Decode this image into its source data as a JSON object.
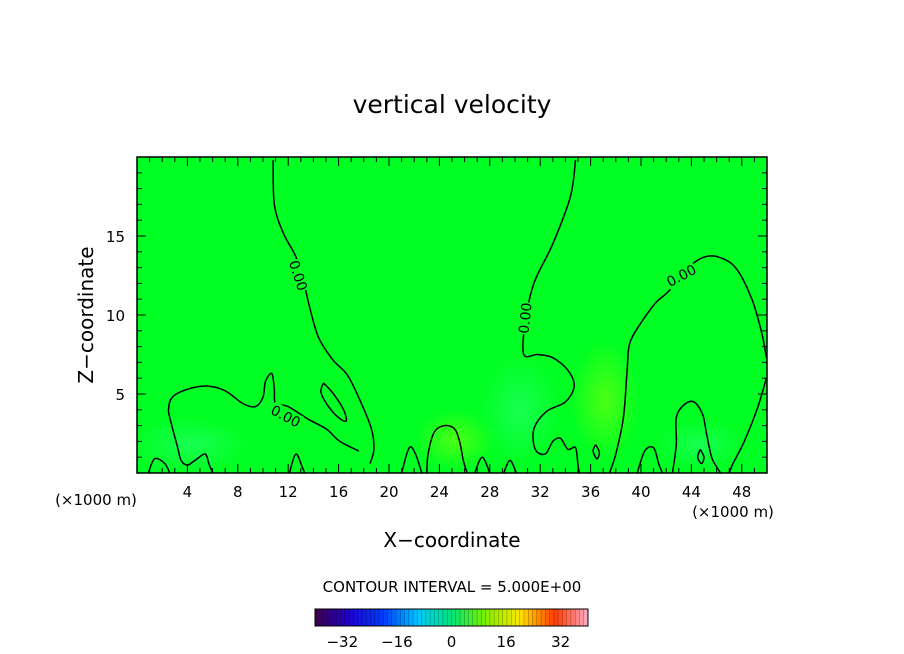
{
  "chart_data": {
    "type": "heatmap",
    "title": "vertical velocity",
    "xlabel": "X−coordinate",
    "ylabel": "Z−coordinate",
    "x_unit_label": "(×1000 m)",
    "y_unit_label": "(×1000 m)",
    "xlim": [
      0,
      50
    ],
    "ylim": [
      0,
      20
    ],
    "x_ticks": [
      4,
      8,
      12,
      16,
      20,
      24,
      28,
      32,
      36,
      40,
      44,
      48
    ],
    "y_ticks": [
      5,
      10,
      15
    ],
    "contour_interval_text": "CONTOUR INTERVAL = 5.000E+00",
    "contour_value_label": "0.00",
    "colorbar": {
      "min": -40,
      "max": 40,
      "ticks": [
        -32,
        -16,
        0,
        16,
        32
      ],
      "tick_labels": [
        "−32",
        "−16",
        "0",
        "16",
        "32"
      ]
    },
    "colors": {
      "background_field": "#00ff22",
      "contour_line": "#000000"
    },
    "contours": [
      {
        "label": "0.00",
        "label_at": [
          12.8,
          12.5
        ],
        "label_angle": 72,
        "points": [
          [
            10.8,
            19.8
          ],
          [
            10.9,
            17
          ],
          [
            11.6,
            15.2
          ],
          [
            12.6,
            13.7
          ],
          [
            13.2,
            12.2
          ],
          [
            13.7,
            10.5
          ],
          [
            14.4,
            8.6
          ],
          [
            15.5,
            7.2
          ],
          [
            16.7,
            6.2
          ],
          [
            17.7,
            4.6
          ],
          [
            18.6,
            2.8
          ],
          [
            18.8,
            1.5
          ],
          [
            18.5,
            0.6
          ]
        ]
      },
      {
        "label": "0.00",
        "label_at": [
          11.8,
          3.6
        ],
        "label_angle": 28,
        "points": [
          [
            17.6,
            1.4
          ],
          [
            16.1,
            2.0
          ],
          [
            15.0,
            2.8
          ],
          [
            13.6,
            3.4
          ],
          [
            12.0,
            4.2
          ],
          [
            11.0,
            4.4
          ],
          [
            10.9,
            5.3
          ],
          [
            10.7,
            6.3
          ],
          [
            10.2,
            5.8
          ],
          [
            10.0,
            4.8
          ],
          [
            9.4,
            4.2
          ],
          [
            8.4,
            4.4
          ],
          [
            7.0,
            5.2
          ],
          [
            5.6,
            5.5
          ],
          [
            4.0,
            5.3
          ],
          [
            2.8,
            4.8
          ],
          [
            2.5,
            4.0
          ],
          [
            2.7,
            3.2
          ],
          [
            3.2,
            1.7
          ],
          [
            3.5,
            0.8
          ],
          [
            4.0,
            0.5
          ],
          [
            4.6,
            0.8
          ],
          [
            5.4,
            1.2
          ],
          [
            5.7,
            0.6
          ],
          [
            6.0,
            0.0
          ]
        ]
      },
      {
        "label": "",
        "points": [
          [
            14.8,
            5.7
          ],
          [
            15.6,
            5.0
          ],
          [
            16.4,
            4.0
          ],
          [
            16.6,
            3.3
          ],
          [
            16.0,
            3.5
          ],
          [
            15.2,
            4.2
          ],
          [
            14.6,
            5.1
          ],
          [
            14.8,
            5.7
          ]
        ]
      },
      {
        "label": "0.00",
        "label_at": [
          30.8,
          9.8
        ],
        "label_angle": -84,
        "points": [
          [
            34.8,
            19.8
          ],
          [
            34.4,
            17.5
          ],
          [
            33.0,
            14.5
          ],
          [
            31.5,
            12.0
          ],
          [
            30.8,
            9.5
          ],
          [
            30.7,
            7.5
          ],
          [
            31.8,
            7.5
          ],
          [
            33.0,
            7.3
          ],
          [
            34.2,
            6.5
          ],
          [
            34.7,
            5.5
          ],
          [
            34.0,
            4.5
          ],
          [
            32.5,
            3.9
          ],
          [
            31.5,
            2.8
          ],
          [
            31.6,
            1.5
          ],
          [
            32.4,
            1.2
          ],
          [
            33.0,
            2.0
          ],
          [
            33.6,
            2.2
          ],
          [
            34.2,
            1.5
          ],
          [
            34.8,
            1.6
          ],
          [
            35.0,
            0.5
          ],
          [
            35.1,
            0.0
          ]
        ]
      },
      {
        "label": "0.00",
        "label_at": [
          43.2,
          12.5
        ],
        "label_angle": -28,
        "points": [
          [
            37.5,
            0.0
          ],
          [
            38.0,
            1.2
          ],
          [
            38.6,
            3.5
          ],
          [
            38.9,
            6.5
          ],
          [
            39.1,
            8.2
          ],
          [
            40.0,
            9.5
          ],
          [
            41.2,
            10.8
          ],
          [
            42.2,
            11.5
          ],
          [
            43.5,
            12.8
          ],
          [
            44.8,
            13.6
          ],
          [
            46.0,
            13.7
          ],
          [
            47.5,
            13.0
          ],
          [
            48.8,
            11.0
          ],
          [
            49.6,
            8.8
          ],
          [
            49.95,
            7.3
          ]
        ]
      },
      {
        "label": "",
        "points": [
          [
            49.95,
            6.0
          ],
          [
            49.2,
            4.0
          ],
          [
            48.2,
            2.0
          ],
          [
            47.3,
            0.6
          ],
          [
            47.0,
            0.0
          ]
        ]
      },
      {
        "label": "",
        "points": [
          [
            42.5,
            0.0
          ],
          [
            42.8,
            1.8
          ],
          [
            42.8,
            3.5
          ],
          [
            43.4,
            4.3
          ],
          [
            44.2,
            4.5
          ],
          [
            44.9,
            3.7
          ],
          [
            45.2,
            2.5
          ],
          [
            45.6,
            1.0
          ],
          [
            46.0,
            0.4
          ],
          [
            46.3,
            0.0
          ]
        ]
      },
      {
        "label": "",
        "points": [
          [
            23.0,
            0.0
          ],
          [
            23.1,
            1.2
          ],
          [
            23.6,
            2.6
          ],
          [
            24.4,
            3.0
          ],
          [
            25.2,
            2.8
          ],
          [
            25.6,
            2.0
          ],
          [
            25.9,
            0.8
          ],
          [
            26.2,
            0.0
          ]
        ]
      },
      {
        "label": "",
        "points": [
          [
            21.0,
            0.0
          ],
          [
            21.6,
            1.6
          ],
          [
            22.1,
            1.2
          ],
          [
            22.6,
            0.0
          ]
        ]
      },
      {
        "label": "",
        "points": [
          [
            29.1,
            0.0
          ],
          [
            29.6,
            0.8
          ],
          [
            30.1,
            0.0
          ]
        ]
      },
      {
        "label": "",
        "points": [
          [
            39.7,
            0.0
          ],
          [
            40.3,
            1.4
          ],
          [
            41.0,
            1.6
          ],
          [
            41.4,
            0.6
          ],
          [
            41.7,
            0.0
          ]
        ]
      },
      {
        "label": "",
        "points": [
          [
            12.1,
            0.0
          ],
          [
            12.6,
            1.2
          ],
          [
            13.1,
            0.4
          ],
          [
            13.3,
            0.0
          ]
        ]
      },
      {
        "label": "",
        "points": [
          [
            0.9,
            0.0
          ],
          [
            1.4,
            0.9
          ],
          [
            2.2,
            0.6
          ],
          [
            2.6,
            0.0
          ]
        ]
      },
      {
        "label": "",
        "points": [
          [
            36.4,
            1.8
          ],
          [
            36.7,
            1.3
          ],
          [
            36.5,
            0.9
          ],
          [
            36.2,
            1.4
          ],
          [
            36.4,
            1.8
          ]
        ]
      },
      {
        "label": "",
        "points": [
          [
            44.7,
            1.5
          ],
          [
            45.0,
            1.0
          ],
          [
            44.8,
            0.6
          ],
          [
            44.5,
            1.0
          ],
          [
            44.7,
            1.5
          ]
        ]
      },
      {
        "label": "",
        "points": [
          [
            26.8,
            0.0
          ],
          [
            27.4,
            1.0
          ],
          [
            28.0,
            0.0
          ]
        ]
      }
    ]
  }
}
